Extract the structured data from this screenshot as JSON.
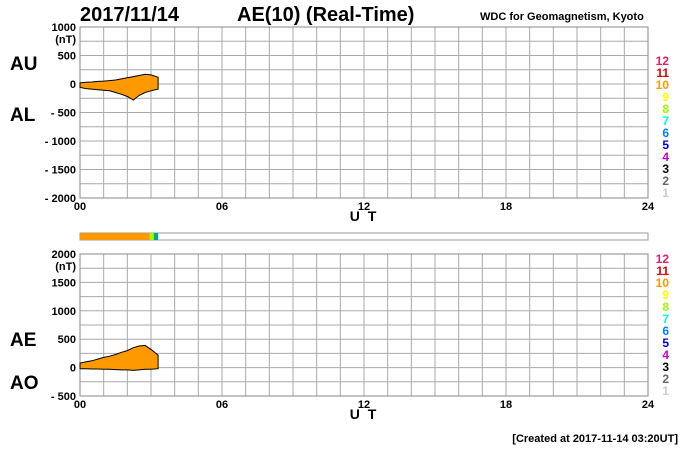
{
  "header": {
    "date": "2017/11/14",
    "title": "AE(10) (Real-Time)",
    "source": "WDC for Geomagnetism, Kyoto"
  },
  "footer": {
    "created": "[Created at 2017-11-14 03:20UT]"
  },
  "station_scale": {
    "labels": [
      "12",
      "11",
      "10",
      "9",
      "8",
      "7",
      "6",
      "5",
      "4",
      "3",
      "2",
      "1"
    ],
    "colors": [
      "#e0206e",
      "#e00000",
      "#ff9900",
      "#ffff00",
      "#99ff00",
      "#00ffcc",
      "#0080ff",
      "#0000cc",
      "#cc00cc",
      "#000000",
      "#666666",
      "#cccccc"
    ]
  },
  "station_bar": {
    "segments": [
      {
        "from_h": 0.0,
        "to_h": 2.95,
        "color": "#ff9900"
      },
      {
        "from_h": 2.95,
        "to_h": 3.12,
        "color": "#99ff00"
      },
      {
        "from_h": 3.12,
        "to_h": 3.3,
        "color": "#00aa88"
      }
    ]
  },
  "chart_data": [
    {
      "type": "area",
      "name_top": "AU",
      "name_bottom": "AL",
      "unit": "(nT)",
      "xlabel": "U T",
      "xlim": [
        0,
        24
      ],
      "ylim": [
        -2000,
        1000
      ],
      "xticks": [
        "00",
        "06",
        "12",
        "18",
        "24"
      ],
      "yticks": [
        {
          "v": 1000,
          "t": "1000"
        },
        {
          "v": 500,
          "t": "500"
        },
        {
          "v": 0,
          "t": "0"
        },
        {
          "v": -500,
          "t": "- 500"
        },
        {
          "v": -1000,
          "t": "- 1000"
        },
        {
          "v": -1500,
          "t": "- 1500"
        },
        {
          "v": -2000,
          "t": "- 2000"
        }
      ],
      "x": [
        0.0,
        0.25,
        0.5,
        0.75,
        1.0,
        1.25,
        1.5,
        1.75,
        2.0,
        2.25,
        2.5,
        2.75,
        3.0,
        3.3
      ],
      "upper": [
        20,
        30,
        35,
        45,
        50,
        60,
        70,
        90,
        110,
        130,
        150,
        170,
        160,
        120
      ],
      "lower": [
        -60,
        -80,
        -90,
        -100,
        -110,
        -120,
        -150,
        -180,
        -220,
        -280,
        -200,
        -150,
        -120,
        -90
      ],
      "fill_color": "#ff9900"
    },
    {
      "type": "area",
      "name_top": "AE",
      "name_bottom": "AO",
      "unit": "(nT)",
      "xlabel": "U T",
      "xlim": [
        0,
        24
      ],
      "ylim": [
        -500,
        2000
      ],
      "xticks": [
        "00",
        "06",
        "12",
        "18",
        "24"
      ],
      "yticks": [
        {
          "v": 2000,
          "t": "2000"
        },
        {
          "v": 1500,
          "t": "1500"
        },
        {
          "v": 1000,
          "t": "1000"
        },
        {
          "v": 500,
          "t": "500"
        },
        {
          "v": 0,
          "t": "0"
        },
        {
          "v": -500,
          "t": "- 500"
        }
      ],
      "x": [
        0.0,
        0.25,
        0.5,
        0.75,
        1.0,
        1.25,
        1.5,
        1.75,
        2.0,
        2.25,
        2.5,
        2.75,
        3.0,
        3.3
      ],
      "upper": [
        80,
        100,
        120,
        150,
        180,
        200,
        230,
        270,
        300,
        350,
        380,
        390,
        320,
        220
      ],
      "lower": [
        -20,
        -20,
        -25,
        -25,
        -30,
        -30,
        -35,
        -40,
        -40,
        -50,
        -40,
        -30,
        -30,
        -20
      ],
      "fill_color": "#ff9900"
    }
  ]
}
